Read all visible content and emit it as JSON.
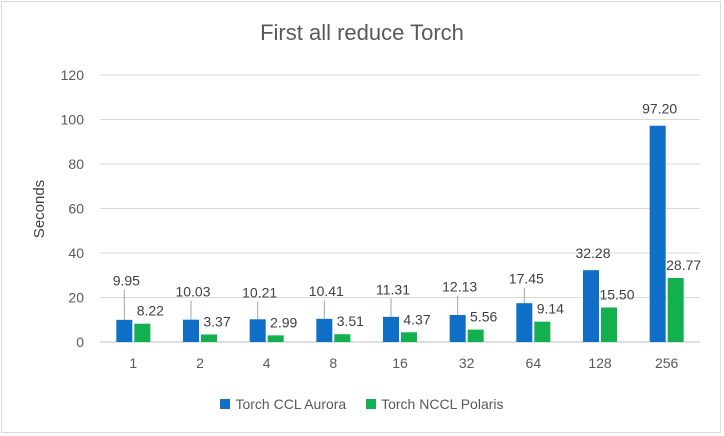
{
  "chart_data": {
    "type": "bar",
    "title": "First all reduce Torch",
    "xlabel": "",
    "ylabel": "Seconds",
    "ylim": [
      0,
      120
    ],
    "yticks": [
      0,
      20,
      40,
      60,
      80,
      100,
      120
    ],
    "categories": [
      "1",
      "2",
      "4",
      "8",
      "16",
      "32",
      "64",
      "128",
      "256"
    ],
    "series": [
      {
        "name": "Torch CCL Aurora",
        "color": "#0f6fc6",
        "values": [
          9.95,
          10.03,
          10.21,
          10.41,
          11.31,
          12.13,
          17.45,
          32.28,
          97.2
        ],
        "labels": [
          "9.95",
          "10.03",
          "10.21",
          "10.41",
          "11.31",
          "12.13",
          "17.45",
          "32.28",
          "97.20"
        ]
      },
      {
        "name": "Torch NCCL Polaris",
        "color": "#12b04f",
        "values": [
          8.22,
          3.37,
          2.99,
          3.51,
          4.37,
          5.56,
          9.14,
          15.5,
          28.77
        ],
        "labels": [
          "8.22",
          "3.37",
          "2.99",
          "3.51",
          "4.37",
          "5.56",
          "9.14",
          "15.50",
          "28.77"
        ]
      }
    ],
    "grid": true,
    "legend_position": "bottom"
  }
}
